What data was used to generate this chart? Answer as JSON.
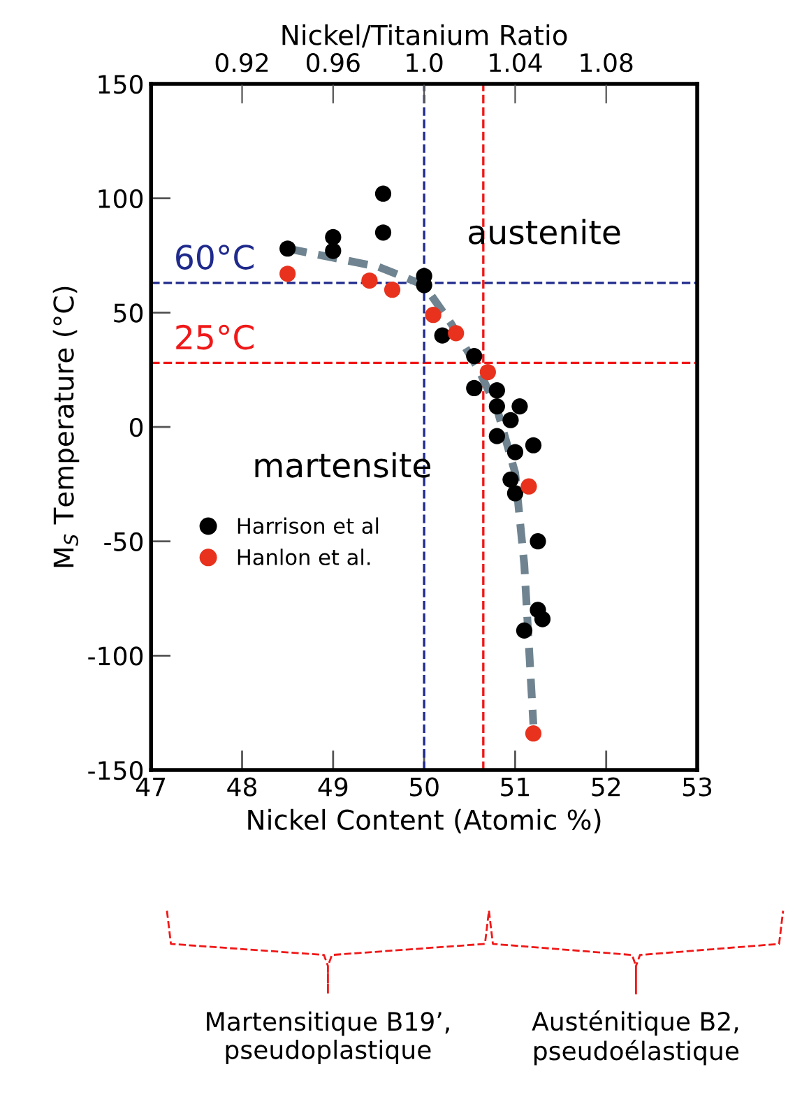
{
  "chart_data": {
    "type": "scatter",
    "xlabel": "Nickel Content (Atomic %)",
    "ylabel": "M$_{S}$ Temperature (°C)",
    "x2label": "Nickel/Titanium Ratio",
    "xlim": [
      47,
      53
    ],
    "xticks": [
      47,
      48,
      49,
      50,
      51,
      52,
      53
    ],
    "ylim": [
      -150,
      150
    ],
    "yticks": [
      -150,
      -100,
      -50,
      0,
      50,
      100,
      150
    ],
    "x2lim": [
      0.88,
      1.12
    ],
    "x2ticks": [
      0.92,
      0.96,
      {
        "value": 1.0,
        "label": "1.0"
      },
      1.04,
      1.08
    ],
    "marker": "circle",
    "legend": "lower left",
    "grid": false,
    "series": [
      {
        "name": "Harrison et al",
        "color": "#000000",
        "x": [
          48.5,
          49.0,
          49.0,
          49.55,
          49.55,
          50.0,
          50.0,
          50.2,
          50.55,
          50.55,
          50.8,
          50.8,
          51.05,
          50.95,
          50.8,
          51.0,
          51.2,
          50.95,
          51.0,
          51.25,
          51.25,
          51.3,
          51.1
        ],
        "values": [
          78,
          83,
          77,
          102,
          85,
          66,
          62,
          40,
          31,
          17,
          16,
          9,
          9,
          3,
          -4,
          -11,
          -8,
          -23,
          -29,
          -50,
          -80,
          -84,
          -89
        ]
      },
      {
        "name": "Hanlon et al.",
        "color": "#e8321e",
        "x": [
          48.5,
          49.4,
          49.65,
          50.1,
          50.35,
          50.7,
          51.15,
          51.2
        ],
        "values": [
          67,
          64,
          60,
          49,
          41,
          24,
          -26,
          -134
        ]
      },
      {
        "type": "line",
        "color": "#6f8490",
        "line_style": "dashed",
        "marker": "none",
        "x": [
          48.5,
          49.0,
          49.5,
          50.0,
          50.3,
          50.6,
          50.8,
          51.0,
          51.1,
          51.2
        ],
        "values": [
          78,
          74,
          70,
          62,
          45,
          25,
          8,
          -20,
          -60,
          -130
        ]
      }
    ],
    "ref_lines": [
      {
        "axis": "y",
        "value": 63,
        "label": "60°C",
        "color": "#1f2a8c",
        "line_style": "dashed"
      },
      {
        "axis": "y",
        "value": 28,
        "label": "25°C",
        "color": "#f01818",
        "line_style": "dashed"
      },
      {
        "axis": "x",
        "value": 50.0,
        "color": "#1f2a8c",
        "line_style": "dashed"
      },
      {
        "axis": "x",
        "value": 50.65,
        "color": "#f01818",
        "line_style": "dashed"
      }
    ],
    "annotations": [
      "austenite",
      "martensite",
      "Martensitique B19’,\npseudoplastique",
      "Austénitique B2,\npseudoélastique"
    ]
  }
}
